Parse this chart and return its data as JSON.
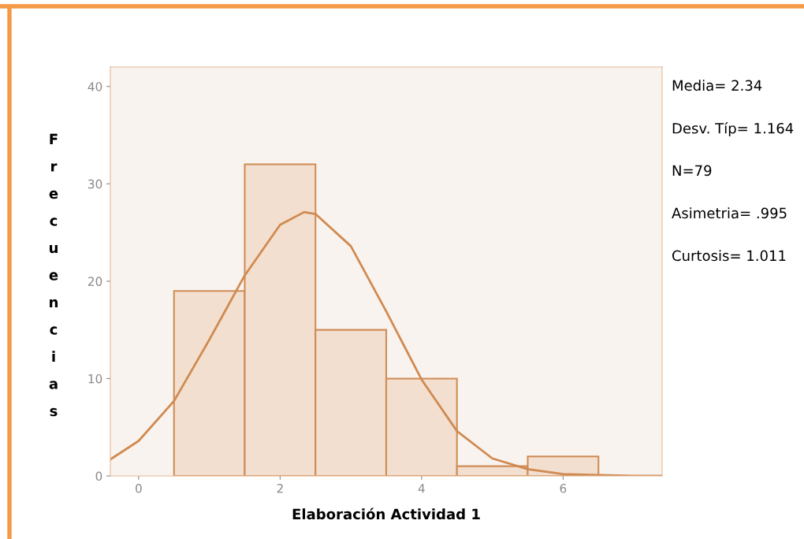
{
  "chart_data": {
    "type": "histogram",
    "xlabel": "Elaboración Actividad 1",
    "ylabel": "Frecuencias",
    "bins": [
      0.5,
      1.5,
      2.5,
      3.5,
      4.5,
      5.5,
      6.5
    ],
    "values": [
      19,
      32,
      15,
      10,
      1,
      2
    ],
    "color": "#f2dfd0",
    "series": [
      {
        "type": "line",
        "color": "#d08a50",
        "x": [
          -0.4,
          0,
          0.5,
          1,
          1.5,
          2,
          2.34,
          2.5,
          3,
          3.5,
          4,
          4.5,
          5,
          5.5,
          6,
          6.5,
          7,
          7.4
        ],
        "values": [
          1.7,
          3.6,
          7.7,
          14,
          20.6,
          25.8,
          27.1,
          26.9,
          23.6,
          16.9,
          9.9,
          4.6,
          1.8,
          0.7,
          0.2,
          0.1,
          0,
          0
        ]
      }
    ],
    "xlim": [
      -0.4,
      7.4
    ],
    "xticks": [
      0,
      2,
      4,
      6
    ],
    "ylim": [
      0,
      42
    ],
    "yticks": [
      0,
      10,
      20,
      30,
      40
    ],
    "grid": false,
    "legend": false,
    "annotations": [
      "Media= 2.34",
      "Desv. Típ= 1.164",
      "N=79",
      "Asimetria= .995",
      "Curtosis= 1.011"
    ]
  }
}
